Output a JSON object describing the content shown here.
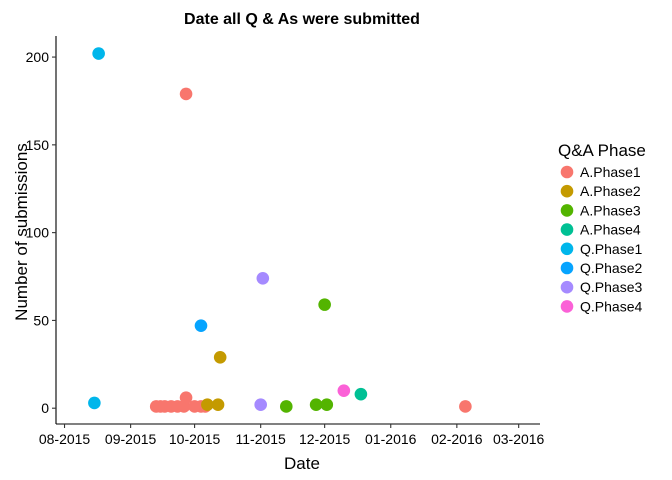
{
  "chart_data": {
    "type": "scatter",
    "title": "Date all Q & As were submitted",
    "xlabel": "Date",
    "ylabel": "Number of submissions",
    "x_ticks": [
      "2015-08-01",
      "2015-09-01",
      "2015-10-01",
      "2015-11-01",
      "2015-12-01",
      "2016-01-01",
      "2016-02-01",
      "2016-03-01"
    ],
    "x_tick_labels": [
      "08-2015",
      "09-2015",
      "10-2015",
      "11-2015",
      "12-2015",
      "01-2016",
      "02-2016",
      "03-2016"
    ],
    "xlim": [
      "2015-07-28",
      "2016-03-11"
    ],
    "y_ticks": [
      0,
      50,
      100,
      150,
      200
    ],
    "y_tick_labels": [
      "0",
      "50",
      "100",
      "150",
      "200"
    ],
    "ylim": [
      -9,
      212
    ],
    "grid": false,
    "legend_title": "Q&A Phase",
    "legend_position": "right",
    "series": [
      {
        "name": "A.Phase1",
        "color": "#F8766D",
        "points": [
          {
            "x": "2015-09-13",
            "y": 1
          },
          {
            "x": "2015-09-15",
            "y": 1
          },
          {
            "x": "2015-09-17",
            "y": 1
          },
          {
            "x": "2015-09-20",
            "y": 1
          },
          {
            "x": "2015-09-23",
            "y": 1
          },
          {
            "x": "2015-09-26",
            "y": 1
          },
          {
            "x": "2015-09-27",
            "y": 6
          },
          {
            "x": "2015-09-27",
            "y": 179
          },
          {
            "x": "2015-10-01",
            "y": 1
          },
          {
            "x": "2015-10-04",
            "y": 1
          },
          {
            "x": "2015-10-06",
            "y": 1
          },
          {
            "x": "2016-02-05",
            "y": 1
          }
        ]
      },
      {
        "name": "A.Phase2",
        "color": "#C49A00",
        "points": [
          {
            "x": "2015-10-07",
            "y": 2
          },
          {
            "x": "2015-10-12",
            "y": 2
          },
          {
            "x": "2015-10-13",
            "y": 29
          }
        ]
      },
      {
        "name": "A.Phase3",
        "color": "#53B400",
        "points": [
          {
            "x": "2015-11-13",
            "y": 1
          },
          {
            "x": "2015-11-27",
            "y": 2
          },
          {
            "x": "2015-12-02",
            "y": 2
          },
          {
            "x": "2015-12-01",
            "y": 59
          }
        ]
      },
      {
        "name": "A.Phase4",
        "color": "#00C094",
        "points": [
          {
            "x": "2015-12-18",
            "y": 8
          }
        ]
      },
      {
        "name": "Q.Phase1",
        "color": "#00B6EB",
        "points": [
          {
            "x": "2015-08-15",
            "y": 3
          },
          {
            "x": "2015-08-17",
            "y": 202
          }
        ]
      },
      {
        "name": "Q.Phase2",
        "color": "#06A4FF",
        "points": [
          {
            "x": "2015-10-04",
            "y": 47
          }
        ]
      },
      {
        "name": "Q.Phase3",
        "color": "#A58AFF",
        "points": [
          {
            "x": "2015-11-01",
            "y": 2
          },
          {
            "x": "2015-11-02",
            "y": 74
          }
        ]
      },
      {
        "name": "Q.Phase4",
        "color": "#FB61D7",
        "points": [
          {
            "x": "2015-12-10",
            "y": 10
          }
        ]
      }
    ]
  }
}
